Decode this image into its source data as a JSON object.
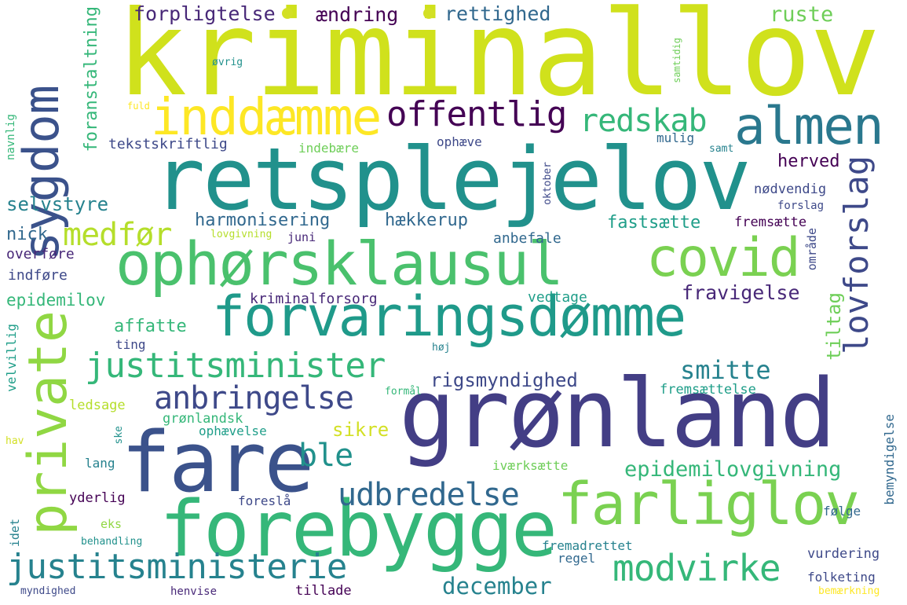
{
  "colors": {
    "background": "#ffffff",
    "palette": [
      "#440154",
      "#482878",
      "#3e4989",
      "#31688e",
      "#26828e",
      "#1f9e89",
      "#35b779",
      "#6ece58",
      "#b5de2b",
      "#d3e025",
      "#fde725"
    ]
  },
  "words": [
    {
      "text": "kriminallov",
      "color": "#d0e11c"
    },
    {
      "text": "retsplejelov",
      "color": "#21918c"
    },
    {
      "text": "grønland",
      "color": "#433e85"
    },
    {
      "text": "forebygge",
      "color": "#35b779"
    },
    {
      "text": "fare",
      "color": "#3b528b"
    },
    {
      "text": "forvaringsdømme",
      "color": "#1f9a8a"
    },
    {
      "text": "ophørsklausul",
      "color": "#4ac16d"
    },
    {
      "text": "farliglov",
      "color": "#7ad151"
    },
    {
      "text": "private",
      "color": "#90d743"
    },
    {
      "text": "sygdom",
      "color": "#3b528b"
    },
    {
      "text": "almen",
      "color": "#2a788e"
    },
    {
      "text": "inddæmme",
      "color": "#fde725"
    },
    {
      "text": "covid",
      "color": "#7ad151"
    },
    {
      "text": "offentlig",
      "color": "#440154"
    },
    {
      "text": "justitsminister",
      "color": "#35b779"
    },
    {
      "text": "justitsministerie",
      "color": "#26828e"
    },
    {
      "text": "anbringelse",
      "color": "#3e4989"
    },
    {
      "text": "udbredelse",
      "color": "#31688e"
    },
    {
      "text": "modvirke",
      "color": "#35b779"
    },
    {
      "text": "medfør",
      "color": "#b5de2b"
    },
    {
      "text": "redskab",
      "color": "#35b779"
    },
    {
      "text": "lovforslag",
      "color": "#3e4989"
    },
    {
      "text": "smitte",
      "color": "#26828e"
    },
    {
      "text": "ble",
      "color": "#21918c"
    },
    {
      "text": "december",
      "color": "#26828e"
    },
    {
      "text": "epidemilovgivning",
      "color": "#35b779"
    },
    {
      "text": "forpligtelse",
      "color": "#482878"
    },
    {
      "text": "ændring",
      "color": "#440154"
    },
    {
      "text": "rettighed",
      "color": "#31688e"
    },
    {
      "text": "ruste",
      "color": "#6ece58"
    },
    {
      "text": "rigsmyndighed",
      "color": "#3e4989"
    },
    {
      "text": "fravigelse",
      "color": "#482878"
    },
    {
      "text": "harmonisering",
      "color": "#31688e"
    },
    {
      "text": "hækkerup",
      "color": "#31688e"
    },
    {
      "text": "fastsætte",
      "color": "#1f9e89"
    },
    {
      "text": "tiltag",
      "color": "#6ece58"
    },
    {
      "text": "selvstyre",
      "color": "#26828e"
    },
    {
      "text": "epidemilov",
      "color": "#35b779"
    },
    {
      "text": "affatte",
      "color": "#35b779"
    },
    {
      "text": "sikre",
      "color": "#d3e025"
    },
    {
      "text": "herved",
      "color": "#440154"
    },
    {
      "text": "foranstaltning",
      "color": "#35b779"
    },
    {
      "text": "nick",
      "color": "#31688e"
    },
    {
      "text": "tekstskriftlig",
      "color": "#3e4989"
    },
    {
      "text": "overføre",
      "color": "#482878"
    },
    {
      "text": "indføre",
      "color": "#3e4989"
    },
    {
      "text": "kriminalforsorg",
      "color": "#482878"
    },
    {
      "text": "vedtage",
      "color": "#1f9e89"
    },
    {
      "text": "anbefale",
      "color": "#31688e"
    },
    {
      "text": "fremsætte",
      "color": "#440154"
    },
    {
      "text": "nødvendig",
      "color": "#3e4989"
    },
    {
      "text": "forslag",
      "color": "#3e4989"
    },
    {
      "text": "område",
      "color": "#3e4989"
    },
    {
      "text": "juni",
      "color": "#482878"
    },
    {
      "text": "lovgivning",
      "color": "#b5de2b"
    },
    {
      "text": "ophæve",
      "color": "#3e4989"
    },
    {
      "text": "indebære",
      "color": "#6ece58"
    },
    {
      "text": "mulig",
      "color": "#31688e"
    },
    {
      "text": "samt",
      "color": "#26828e"
    },
    {
      "text": "oktober",
      "color": "#3e4989"
    },
    {
      "text": "ting",
      "color": "#3e4989"
    },
    {
      "text": "høj",
      "color": "#26828e"
    },
    {
      "text": "grønlandsk",
      "color": "#35b779"
    },
    {
      "text": "ophævelse",
      "color": "#1f9e89"
    },
    {
      "text": "ledsage",
      "color": "#b5de2b"
    },
    {
      "text": "formål",
      "color": "#35b779"
    },
    {
      "text": "fremsættelse",
      "color": "#1f9e89"
    },
    {
      "text": "iværksætte",
      "color": "#6ece58"
    },
    {
      "text": "lang",
      "color": "#26828e"
    },
    {
      "text": "ske",
      "color": "#21918c"
    },
    {
      "text": "velvillig",
      "color": "#1f9e89"
    },
    {
      "text": "hav",
      "color": "#d3e025"
    },
    {
      "text": "yderlig",
      "color": "#440154"
    },
    {
      "text": "foreslå",
      "color": "#3e4989"
    },
    {
      "text": "eks",
      "color": "#90d743"
    },
    {
      "text": "idet",
      "color": "#26828e"
    },
    {
      "text": "behandling",
      "color": "#21918c"
    },
    {
      "text": "fremadrettet",
      "color": "#26828e"
    },
    {
      "text": "regel",
      "color": "#31688e"
    },
    {
      "text": "vurdering",
      "color": "#3e4989"
    },
    {
      "text": "følge",
      "color": "#31688e"
    },
    {
      "text": "bemyndigelse",
      "color": "#31688e"
    },
    {
      "text": "folketing",
      "color": "#3e4989"
    },
    {
      "text": "bemærkning",
      "color": "#fde725"
    },
    {
      "text": "myndighed",
      "color": "#3e4989"
    },
    {
      "text": "henvise",
      "color": "#482878"
    },
    {
      "text": "tillade",
      "color": "#440154"
    },
    {
      "text": "navnlig",
      "color": "#35b779"
    },
    {
      "text": "øvrig",
      "color": "#21918c"
    },
    {
      "text": "fuld",
      "color": "#fde725"
    },
    {
      "text": "samtidig",
      "color": "#6ece58"
    }
  ],
  "dots": [
    {
      "color": "#d3e025"
    },
    {
      "color": "#d3e025"
    }
  ]
}
